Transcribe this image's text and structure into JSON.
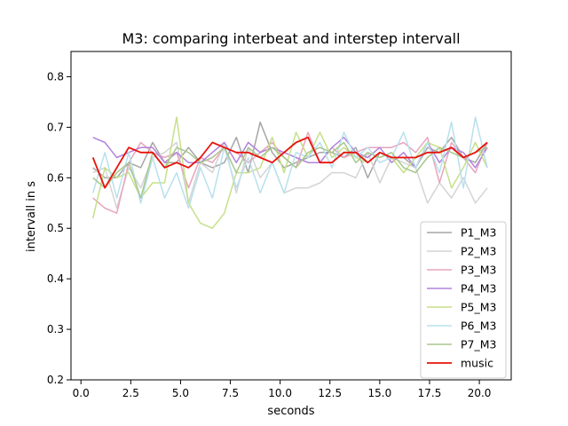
{
  "chart_data": {
    "type": "line",
    "title": "M3: comparing interbeat and interstep intervall",
    "xlabel": "seconds",
    "ylabel": "intervall in s",
    "xlim": [
      -0.5,
      21.6
    ],
    "ylim": [
      0.2,
      0.85
    ],
    "xticks": [
      0.0,
      2.5,
      5.0,
      7.5,
      10.0,
      12.5,
      15.0,
      17.5,
      20.0
    ],
    "xtick_labels": [
      "0.0",
      "2.5",
      "5.0",
      "7.5",
      "10.0",
      "12.5",
      "15.0",
      "17.5",
      "20.0"
    ],
    "yticks": [
      0.2,
      0.3,
      0.4,
      0.5,
      0.6,
      0.7,
      0.8
    ],
    "ytick_labels": [
      "0.2",
      "0.3",
      "0.4",
      "0.5",
      "0.6",
      "0.7",
      "0.8"
    ],
    "grid": false,
    "legend_position": "lower-right",
    "x": [
      0.6,
      1.2,
      1.8,
      2.4,
      3.0,
      3.6,
      4.2,
      4.8,
      5.4,
      6.0,
      6.6,
      7.2,
      7.8,
      8.4,
      9.0,
      9.6,
      10.2,
      10.8,
      11.4,
      12.0,
      12.6,
      13.2,
      13.8,
      14.4,
      15.0,
      15.6,
      16.2,
      16.8,
      17.4,
      18.0,
      18.6,
      19.2,
      19.8,
      20.4
    ],
    "series": [
      {
        "name": "P1_M3",
        "color": "#a6a6a6",
        "width": 1.5,
        "values": [
          0.62,
          0.6,
          0.6,
          0.63,
          0.62,
          0.67,
          0.63,
          0.63,
          0.66,
          0.63,
          0.62,
          0.63,
          0.68,
          0.61,
          0.71,
          0.65,
          0.62,
          0.63,
          0.64,
          0.65,
          0.65,
          0.64,
          0.66,
          0.6,
          0.65,
          0.64,
          0.64,
          0.62,
          0.66,
          0.65,
          0.68,
          0.64,
          0.63,
          0.67
        ]
      },
      {
        "name": "P2_M3",
        "color": "#d4d4d4",
        "width": 1.5,
        "values": [
          0.61,
          0.62,
          0.54,
          0.62,
          0.58,
          0.64,
          0.65,
          0.67,
          0.55,
          0.63,
          0.61,
          0.67,
          0.57,
          0.66,
          0.6,
          0.63,
          0.57,
          0.58,
          0.58,
          0.59,
          0.61,
          0.61,
          0.6,
          0.65,
          0.59,
          0.64,
          0.63,
          0.62,
          0.55,
          0.59,
          0.56,
          0.6,
          0.55,
          0.58
        ]
      },
      {
        "name": "P3_M3",
        "color": "#e8a5be",
        "width": 1.5,
        "values": [
          0.56,
          0.54,
          0.53,
          0.63,
          0.67,
          0.65,
          0.64,
          0.65,
          0.58,
          0.64,
          0.63,
          0.66,
          0.65,
          0.63,
          0.65,
          0.67,
          0.64,
          0.62,
          0.69,
          0.63,
          0.66,
          0.64,
          0.65,
          0.66,
          0.66,
          0.66,
          0.67,
          0.65,
          0.68,
          0.59,
          0.67,
          0.64,
          0.61,
          0.67
        ]
      },
      {
        "name": "P4_M3",
        "color": "#b283dc",
        "width": 1.5,
        "values": [
          0.68,
          0.67,
          0.64,
          0.65,
          0.66,
          0.66,
          0.63,
          0.65,
          0.63,
          0.63,
          0.65,
          0.67,
          0.63,
          0.67,
          0.65,
          0.66,
          0.65,
          0.64,
          0.63,
          0.63,
          0.66,
          0.68,
          0.65,
          0.64,
          0.66,
          0.63,
          0.65,
          0.62,
          0.67,
          0.63,
          0.66,
          0.65,
          0.62,
          0.66
        ]
      },
      {
        "name": "P5_M3",
        "color": "#c5e08a",
        "width": 1.5,
        "values": [
          0.52,
          0.62,
          0.6,
          0.61,
          0.56,
          0.59,
          0.59,
          0.72,
          0.55,
          0.51,
          0.5,
          0.53,
          0.61,
          0.61,
          0.62,
          0.68,
          0.61,
          0.69,
          0.64,
          0.69,
          0.64,
          0.66,
          0.64,
          0.63,
          0.65,
          0.64,
          0.61,
          0.64,
          0.67,
          0.66,
          0.58,
          0.62,
          0.67,
          0.62
        ]
      },
      {
        "name": "P6_M3",
        "color": "#b8e0ee",
        "width": 1.5,
        "values": [
          0.57,
          0.65,
          0.56,
          0.65,
          0.55,
          0.64,
          0.56,
          0.61,
          0.54,
          0.62,
          0.56,
          0.66,
          0.58,
          0.64,
          0.57,
          0.63,
          0.57,
          0.65,
          0.64,
          0.67,
          0.62,
          0.69,
          0.64,
          0.66,
          0.63,
          0.64,
          0.69,
          0.62,
          0.67,
          0.61,
          0.71,
          0.58,
          0.72,
          0.62
        ]
      },
      {
        "name": "P7_M3",
        "color": "#a8c78c",
        "width": 1.5,
        "values": [
          0.6,
          0.58,
          0.61,
          0.63,
          0.56,
          0.65,
          0.62,
          0.66,
          0.65,
          0.63,
          0.64,
          0.66,
          0.61,
          0.66,
          0.64,
          0.66,
          0.64,
          0.62,
          0.65,
          0.66,
          0.65,
          0.67,
          0.63,
          0.65,
          0.64,
          0.65,
          0.62,
          0.61,
          0.64,
          0.66,
          0.65,
          0.64,
          0.65,
          0.66
        ]
      },
      {
        "name": "music",
        "color": "#e8120c",
        "width": 1.8,
        "values": [
          0.64,
          0.58,
          0.62,
          0.66,
          0.65,
          0.65,
          0.62,
          0.63,
          0.62,
          0.64,
          0.67,
          0.66,
          0.65,
          0.65,
          0.64,
          0.63,
          0.65,
          0.67,
          0.68,
          0.63,
          0.63,
          0.65,
          0.65,
          0.63,
          0.65,
          0.64,
          0.64,
          0.64,
          0.65,
          0.65,
          0.66,
          0.64,
          0.65,
          0.67
        ]
      }
    ]
  }
}
